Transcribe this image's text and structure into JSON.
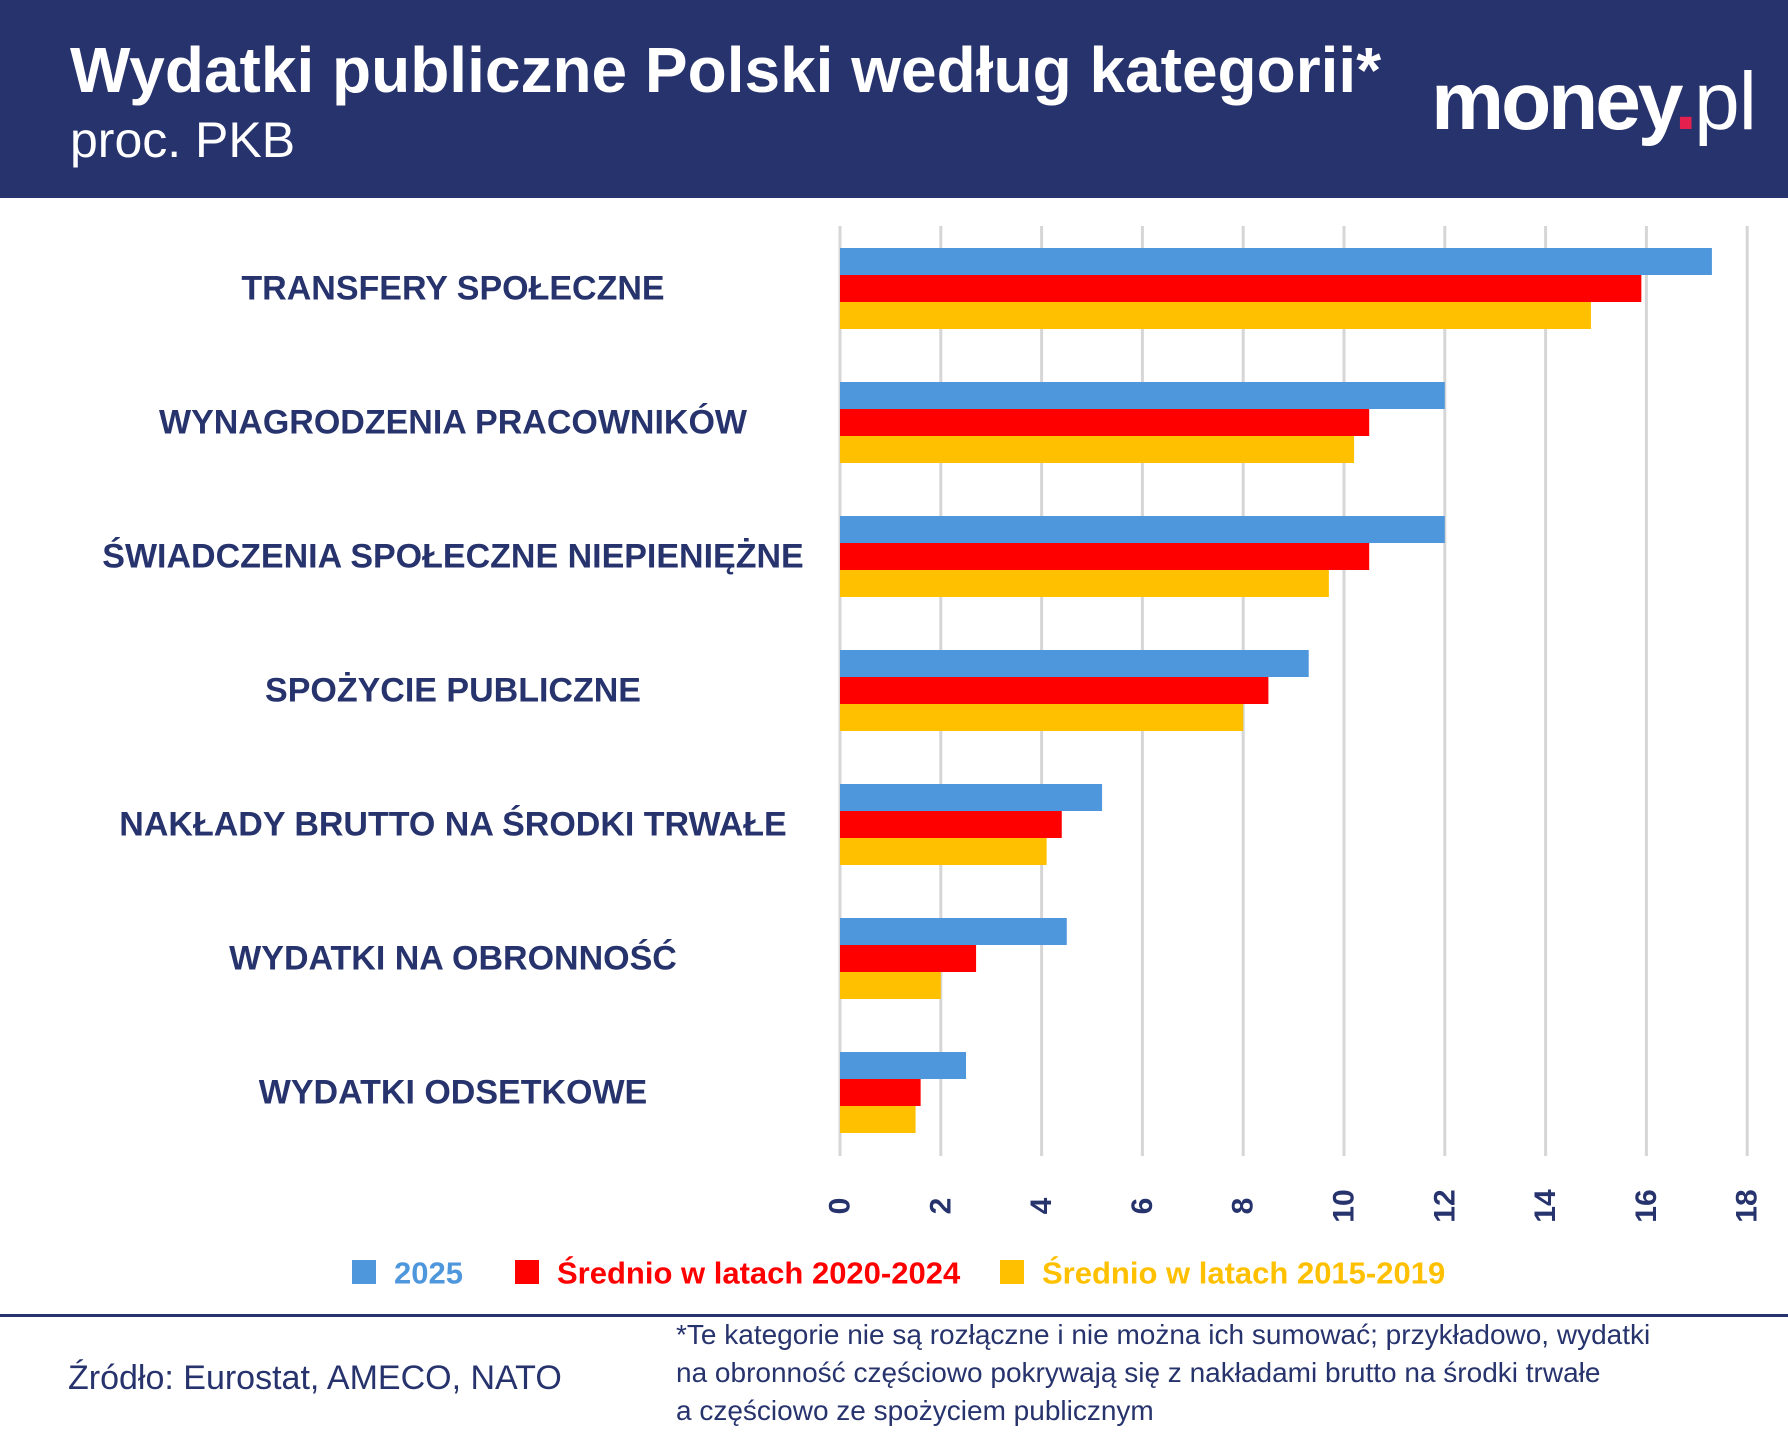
{
  "header": {
    "title": "Wydatki publiczne Polski według kategorii*",
    "subtitle": "proc. PKB",
    "logo_main": "money",
    "logo_dot": ".",
    "logo_suffix": "pl"
  },
  "colors": {
    "header_bg": "#27336d",
    "text_navy": "#27336d",
    "series_2025": "#4f97dc",
    "series_2020_2024": "#ff0000",
    "series_2015_2019": "#ffc000",
    "logo_dot": "#e4204f",
    "grid": "#d6d6d6"
  },
  "chart_data": {
    "type": "bar",
    "orientation": "horizontal",
    "title": "Wydatki publiczne Polski według kategorii*",
    "subtitle": "proc. PKB",
    "categories": [
      "TRANSFERY SPOŁECZNE",
      "WYNAGRODZENIA PRACOWNIKÓW",
      "ŚWIADCZENIA SPOŁECZNE NIEPIENIĘŻNE",
      "SPOŻYCIE PUBLICZNE",
      "NAKŁADY BRUTTO NA ŚRODKI TRWAŁE",
      "WYDATKI NA OBRONNOŚĆ",
      "WYDATKI ODSETKOWE"
    ],
    "series": [
      {
        "name": "2025",
        "color": "#4f97dc",
        "values": [
          17.3,
          12.0,
          12.0,
          9.3,
          5.2,
          4.5,
          2.5
        ]
      },
      {
        "name": "Średnio w latach 2020-2024",
        "color": "#ff0000",
        "values": [
          15.9,
          10.5,
          10.5,
          8.5,
          4.4,
          2.7,
          1.6
        ]
      },
      {
        "name": "Średnio w latach 2015-2019",
        "color": "#ffc000",
        "values": [
          14.9,
          10.2,
          9.7,
          8.0,
          4.1,
          2.0,
          1.5
        ]
      }
    ],
    "xlim": [
      0,
      18
    ],
    "xticks": [
      "0",
      "2",
      "4",
      "6",
      "8",
      "10",
      "12",
      "14",
      "16",
      "18"
    ],
    "xtick_rotation": "vertical",
    "grid": "vertical",
    "legend_position": "bottom"
  },
  "footer": {
    "source": "Źródło: Eurostat, AMECO, NATO",
    "footnote_lines": [
      "*Te kategorie nie są rozłączne i nie można ich sumować; przykładowo, wydatki",
      "na obronność częściowo pokrywają się z nakładami brutto na środki trwałe",
      "a częściowo ze spożyciem publicznym"
    ]
  }
}
